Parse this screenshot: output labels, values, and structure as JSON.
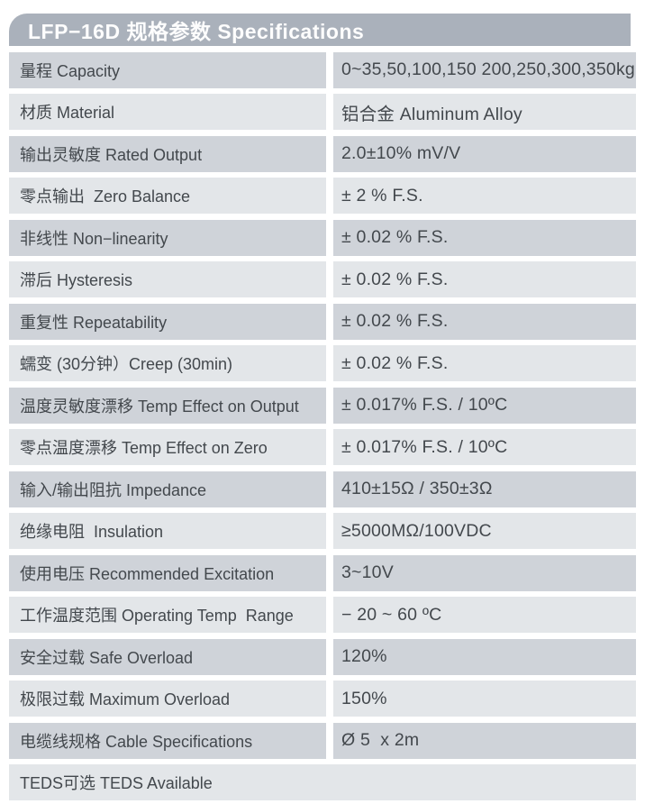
{
  "header": {
    "title": "LFP−16D 规格参数 Specifications",
    "bg_color": "#aab1bb",
    "text_color": "#fdfdfd"
  },
  "table": {
    "row_colors": {
      "dark": "#cfd3d9",
      "light": "#e3e6e9"
    },
    "text_color": "#43484d",
    "rows": [
      {
        "label": "量程 Capacity",
        "value": "0~35,50,100,150 200,250,300,350kg",
        "shade": "dark",
        "full_width": false
      },
      {
        "label": "材质 Material",
        "value": "铝合金 Aluminum Alloy",
        "shade": "light",
        "full_width": false
      },
      {
        "label": "输出灵敏度 Rated Output",
        "value": "2.0±10% mV/V",
        "shade": "dark",
        "full_width": false
      },
      {
        "label": "零点输出  Zero Balance",
        "value": "± 2 % F.S.",
        "shade": "light",
        "full_width": false
      },
      {
        "label": "非线性 Non−linearity",
        "value": "± 0.02 % F.S.",
        "shade": "dark",
        "full_width": false
      },
      {
        "label": "滞后 Hysteresis",
        "value": "± 0.02 % F.S.",
        "shade": "light",
        "full_width": false
      },
      {
        "label": "重复性 Repeatability",
        "value": "± 0.02 % F.S.",
        "shade": "dark",
        "full_width": false
      },
      {
        "label": "蠕变 (30分钟）Creep (30min)",
        "value": "± 0.02 % F.S.",
        "shade": "light",
        "full_width": false
      },
      {
        "label": "温度灵敏度漂移 Temp Effect on Output",
        "value": "± 0.017% F.S. / 10ºC",
        "shade": "dark",
        "full_width": false
      },
      {
        "label": "零点温度漂移 Temp Effect on Zero",
        "value": "± 0.017% F.S. / 10ºC",
        "shade": "light",
        "full_width": false
      },
      {
        "label": "输入/输出阻抗 Impedance",
        "value": "410±15Ω / 350±3Ω",
        "shade": "dark",
        "full_width": false
      },
      {
        "label": "绝缘电阻  Insulation",
        "value": "≥5000MΩ/100VDC",
        "shade": "light",
        "full_width": false
      },
      {
        "label": "使用电压 Recommended Excitation",
        "value": "3~10V",
        "shade": "dark",
        "full_width": false
      },
      {
        "label": "工作温度范围 Operating Temp  Range",
        "value": "− 20 ~ 60 ºC",
        "shade": "light",
        "full_width": false
      },
      {
        "label": "安全过载 Safe Overload",
        "value": "120%",
        "shade": "dark",
        "full_width": false
      },
      {
        "label": "极限过载 Maximum Overload",
        "value": "150%",
        "shade": "light",
        "full_width": false
      },
      {
        "label": "电缆线规格 Cable Specifications",
        "value": "Ø 5  x 2m",
        "shade": "dark",
        "full_width": false
      },
      {
        "label": "TEDS可选 TEDS Available",
        "value": "",
        "shade": "light",
        "full_width": true
      }
    ]
  }
}
